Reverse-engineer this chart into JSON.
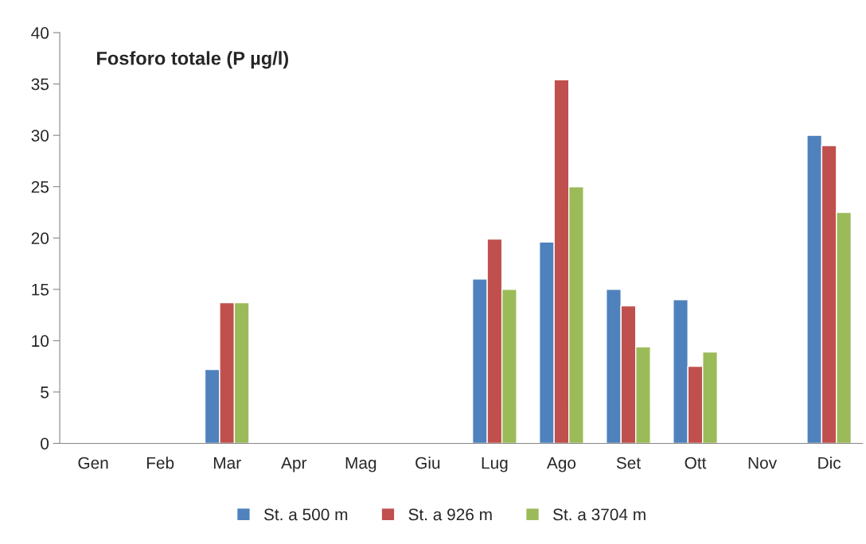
{
  "chart_data": {
    "type": "bar",
    "title": "Fosforo totale (P µg/l)",
    "categories": [
      "Gen",
      "Feb",
      "Mar",
      "Apr",
      "Mag",
      "Giu",
      "Lug",
      "Ago",
      "Set",
      "Ott",
      "Nov",
      "Dic"
    ],
    "series": [
      {
        "name": "St. a 500 m",
        "color": "#4f81bd",
        "values": [
          null,
          null,
          7.2,
          null,
          null,
          null,
          16.0,
          19.6,
          15.0,
          14.0,
          null,
          30.0
        ]
      },
      {
        "name": "St. a 926 m",
        "color": "#c0504d",
        "values": [
          null,
          null,
          13.7,
          null,
          null,
          null,
          19.9,
          35.4,
          13.4,
          7.5,
          null,
          29.0
        ]
      },
      {
        "name": "St. a 3704 m",
        "color": "#9bbb59",
        "values": [
          null,
          null,
          13.7,
          null,
          null,
          null,
          15.0,
          25.0,
          9.4,
          8.9,
          null,
          22.5
        ]
      }
    ],
    "ylim": [
      0,
      40
    ],
    "yticks": [
      0,
      5,
      10,
      15,
      20,
      25,
      30,
      35,
      40
    ],
    "grid": false,
    "legend": "bottom"
  }
}
